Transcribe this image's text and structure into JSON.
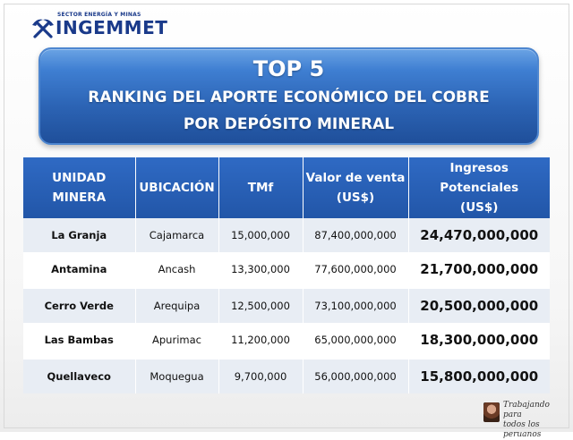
{
  "header": {
    "sector": "SECTOR ENERGÍA Y MINAS",
    "logo_name": "INGEMMET"
  },
  "banner": {
    "title": "TOP 5",
    "subtitle_line1": "RANKING DEL APORTE ECONÓMICO DEL COBRE",
    "subtitle_line2": "POR DEPÓSITO MINERAL"
  },
  "table": {
    "headers": [
      {
        "line1": "UNIDAD",
        "line2": "MINERA"
      },
      {
        "line1": "UBICACIÓN",
        "line2": ""
      },
      {
        "line1": "TMf",
        "line2": ""
      },
      {
        "line1": "Valor de venta",
        "line2": "(US$)"
      },
      {
        "line1": "Ingresos Potenciales",
        "line2": "(US$)"
      }
    ],
    "rows": [
      {
        "unidad": "La Granja",
        "ubicacion": "Cajamarca",
        "tmf": "15,000,000",
        "valor": "87,400,000,000",
        "ingresos": "24,470,000,000"
      },
      {
        "unidad": "Antamina",
        "ubicacion": "Ancash",
        "tmf": "13,300,000",
        "valor": "77,600,000,000",
        "ingresos": "21,700,000,000"
      },
      {
        "unidad": "Cerro Verde",
        "ubicacion": "Arequipa",
        "tmf": "12,500,000",
        "valor": "73,100,000,000",
        "ingresos": "20,500,000,000"
      },
      {
        "unidad": "Las Bambas",
        "ubicacion": "Apurimac",
        "tmf": "11,200,000",
        "valor": "65,000,000,000",
        "ingresos": "18,300,000,000"
      },
      {
        "unidad": "Quellaveco",
        "ubicacion": "Moquegua",
        "tmf": "9,700,000",
        "valor": "56,000,000,000",
        "ingresos": "15,800,000,000"
      }
    ]
  },
  "footer": {
    "slogan_line1": "Trabajando para",
    "slogan_line2": "todos los peruanos"
  },
  "colors": {
    "header_blue": "#2256a8",
    "banner_blue": "#2c64b5",
    "row_alt": "#e8edf4",
    "logo_blue": "#1a3a8a"
  }
}
